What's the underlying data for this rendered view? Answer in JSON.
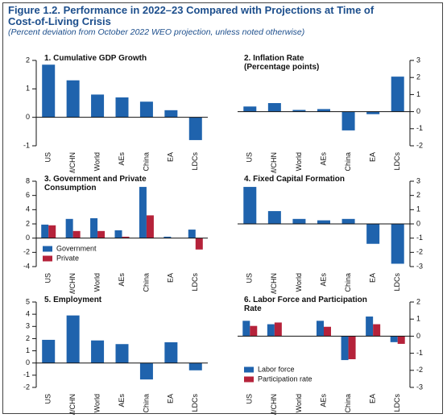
{
  "header": {
    "title": "Figure 1.2. Performance in 2022–23 Compared with Projections at Time of Cost-of-Living Crisis",
    "subtitle": "(Percent deviation from October 2022 WEO projection, unless noted otherwise)"
  },
  "chart_data": [
    {
      "type": "bar",
      "title": "1. Cumulative GDP Growth",
      "axis_side": "left",
      "categories": [
        "US",
        "EM/CHN",
        "World",
        "AEs",
        "China",
        "EA",
        "LDCs"
      ],
      "series": [
        {
          "color": "#1f63ad",
          "values": [
            1.85,
            1.3,
            0.8,
            0.7,
            0.55,
            0.25,
            -0.8
          ]
        }
      ],
      "ylim": [
        -1,
        2
      ],
      "yticks": [
        -1,
        0,
        1,
        2
      ]
    },
    {
      "type": "bar",
      "title": "2. Inflation Rate",
      "subtitle": "(Percentage points)",
      "axis_side": "right",
      "categories": [
        "US",
        "EM/CHN",
        "World",
        "AEs",
        "China",
        "EA",
        "LDCs"
      ],
      "series": [
        {
          "color": "#1f63ad",
          "values": [
            0.3,
            0.5,
            0.1,
            0.15,
            -1.1,
            -0.15,
            2.05
          ]
        }
      ],
      "ylim": [
        -2,
        3
      ],
      "yticks": [
        -2,
        -1,
        0,
        1,
        2,
        3
      ]
    },
    {
      "type": "bar",
      "title": "3. Government and Private Consumption",
      "axis_side": "left",
      "legend": "lower left",
      "categories": [
        "US",
        "EM/CHN",
        "World",
        "AEs",
        "China",
        "EA",
        "LDCs"
      ],
      "series": [
        {
          "name": "Government",
          "color": "#1f63ad",
          "values": [
            1.9,
            2.7,
            2.8,
            1.1,
            7.2,
            0.2,
            1.2
          ]
        },
        {
          "name": "Private",
          "color": "#b5223a",
          "values": [
            1.8,
            1.0,
            1.0,
            0.2,
            3.2,
            0,
            -1.6
          ]
        }
      ],
      "ylim": [
        -4,
        8
      ],
      "yticks": [
        -4,
        -2,
        0,
        2,
        4,
        6,
        8
      ]
    },
    {
      "type": "bar",
      "title": "4. Fixed Capital Formation",
      "axis_side": "right",
      "categories": [
        "US",
        "EM/CHN",
        "World",
        "AEs",
        "China",
        "EA",
        "LDCs"
      ],
      "series": [
        {
          "color": "#1f63ad",
          "values": [
            2.6,
            0.9,
            0.35,
            0.25,
            0.35,
            -1.4,
            -2.8
          ]
        }
      ],
      "ylim": [
        -3,
        3
      ],
      "yticks": [
        -3,
        -2,
        -1,
        0,
        1,
        2,
        3
      ]
    },
    {
      "type": "bar",
      "title": "5. Employment",
      "axis_side": "left",
      "categories": [
        "US",
        "EM/CHN",
        "World",
        "AEs",
        "China",
        "EA",
        "LDCs"
      ],
      "series": [
        {
          "color": "#1f63ad",
          "values": [
            1.9,
            3.9,
            1.85,
            1.55,
            -1.35,
            1.7,
            -0.6
          ]
        }
      ],
      "ylim": [
        -2,
        5
      ],
      "yticks": [
        -2,
        -1,
        0,
        1,
        2,
        3,
        4,
        5
      ]
    },
    {
      "type": "bar",
      "title": "6. Labor Force and Participation Rate",
      "axis_side": "right",
      "legend": "lower left",
      "categories": [
        "US",
        "EM/CHN",
        "World",
        "AEs",
        "China",
        "EA",
        "LDCs"
      ],
      "series": [
        {
          "name": "Labor force",
          "color": "#1f63ad",
          "values": [
            0.9,
            0.7,
            null,
            0.9,
            -1.4,
            1.15,
            -0.35
          ]
        },
        {
          "name": "Participation rate",
          "color": "#b5223a",
          "values": [
            0.6,
            0.8,
            null,
            0.55,
            -1.35,
            0.7,
            -0.45
          ]
        }
      ],
      "ylim": [
        -3,
        2
      ],
      "yticks": [
        -3,
        -2,
        -1,
        0,
        1,
        2
      ]
    }
  ]
}
